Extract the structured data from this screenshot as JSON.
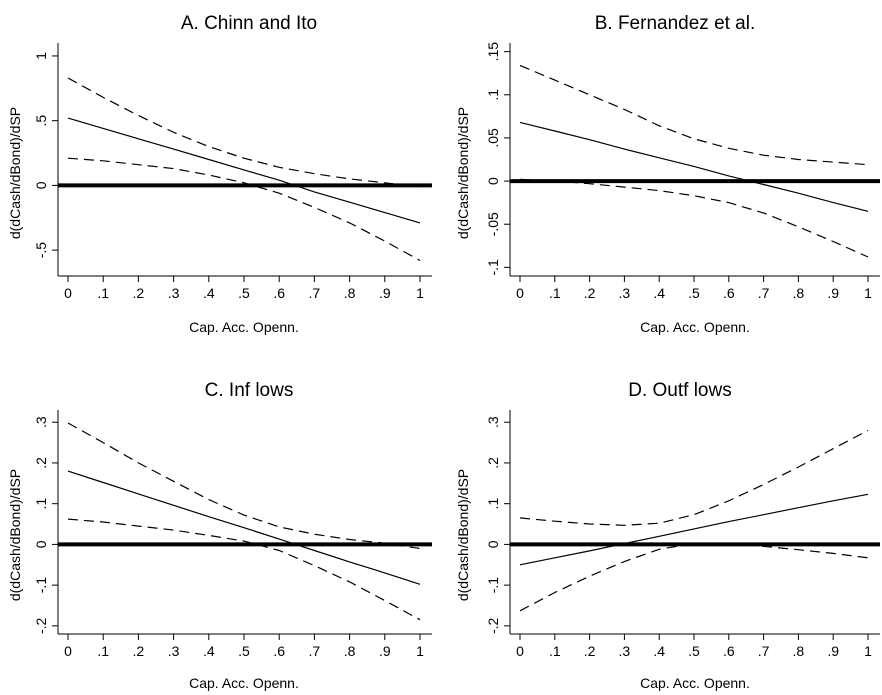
{
  "chart_data": [
    {
      "type": "line",
      "title": "A. Chinn and Ito",
      "xlabel": "Cap. Acc. Openn.",
      "ylabel": "d(dCash/dBond)/dSP",
      "xlim": [
        0,
        1
      ],
      "ylim": [
        -0.7,
        1.1
      ],
      "xticks": [
        0,
        0.1,
        0.2,
        0.3,
        0.4,
        0.5,
        0.6,
        0.7,
        0.8,
        0.9,
        1
      ],
      "xtick_labels": [
        "0",
        ".1",
        ".2",
        ".3",
        ".4",
        ".5",
        ".6",
        ".7",
        ".8",
        ".9",
        "1"
      ],
      "yticks": [
        -0.5,
        0,
        0.5,
        1
      ],
      "ytick_labels": [
        "-.5",
        "0",
        ".5",
        "1"
      ],
      "grid": false,
      "legend": "none",
      "zero_line": 0,
      "series": [
        {
          "style": "solid",
          "x": [
            0,
            0.1,
            0.2,
            0.3,
            0.4,
            0.5,
            0.6,
            0.7,
            0.8,
            0.9,
            1
          ],
          "y": [
            0.52,
            0.44,
            0.36,
            0.28,
            0.2,
            0.12,
            0.04,
            -0.05,
            -0.13,
            -0.21,
            -0.29
          ]
        },
        {
          "style": "dashed",
          "x": [
            0,
            0.1,
            0.2,
            0.3,
            0.4,
            0.5,
            0.6,
            0.7,
            0.8,
            0.9,
            1
          ],
          "y": [
            0.83,
            0.68,
            0.54,
            0.41,
            0.3,
            0.21,
            0.14,
            0.09,
            0.05,
            0.02,
            -0.01
          ]
        },
        {
          "style": "dashed",
          "x": [
            0,
            0.1,
            0.2,
            0.3,
            0.4,
            0.5,
            0.6,
            0.7,
            0.8,
            0.9,
            1
          ],
          "y": [
            0.21,
            0.19,
            0.16,
            0.13,
            0.08,
            0.02,
            -0.06,
            -0.17,
            -0.29,
            -0.43,
            -0.58
          ]
        }
      ]
    },
    {
      "type": "line",
      "title": "B. Fernandez et al.",
      "xlabel": "Cap. Acc. Openn.",
      "ylabel": "d(dCash/dBond)/dSP",
      "xlim": [
        0,
        1
      ],
      "ylim": [
        -0.11,
        0.16
      ],
      "xticks": [
        0,
        0.1,
        0.2,
        0.3,
        0.4,
        0.5,
        0.6,
        0.7,
        0.8,
        0.9,
        1
      ],
      "xtick_labels": [
        "0",
        ".1",
        ".2",
        ".3",
        ".4",
        ".5",
        ".6",
        ".7",
        ".8",
        ".9",
        "1"
      ],
      "yticks": [
        -0.1,
        -0.05,
        0,
        0.05,
        0.1,
        0.15
      ],
      "ytick_labels": [
        "-.1",
        "-.05",
        "0",
        ".05",
        ".1",
        ".15"
      ],
      "grid": false,
      "legend": "none",
      "zero_line": 0,
      "series": [
        {
          "style": "solid",
          "x": [
            0,
            0.1,
            0.2,
            0.3,
            0.4,
            0.5,
            0.6,
            0.7,
            0.8,
            0.9,
            1
          ],
          "y": [
            0.068,
            0.058,
            0.048,
            0.037,
            0.027,
            0.017,
            0.006,
            -0.004,
            -0.014,
            -0.025,
            -0.035
          ]
        },
        {
          "style": "dashed",
          "x": [
            0,
            0.1,
            0.2,
            0.3,
            0.4,
            0.5,
            0.6,
            0.7,
            0.8,
            0.9,
            1
          ],
          "y": [
            0.134,
            0.117,
            0.1,
            0.083,
            0.064,
            0.049,
            0.038,
            0.03,
            0.025,
            0.022,
            0.019
          ]
        },
        {
          "style": "dashed",
          "x": [
            0,
            0.1,
            0.2,
            0.3,
            0.4,
            0.5,
            0.6,
            0.7,
            0.8,
            0.9,
            1
          ],
          "y": [
            0.002,
            0.0,
            -0.003,
            -0.007,
            -0.011,
            -0.017,
            -0.025,
            -0.037,
            -0.053,
            -0.07,
            -0.088
          ]
        }
      ]
    },
    {
      "type": "line",
      "title": "C. Inf lows",
      "xlabel": "Cap. Acc. Openn.",
      "ylabel": "d(dCash/dBond)/dSP",
      "xlim": [
        0,
        1
      ],
      "ylim": [
        -0.22,
        0.33
      ],
      "xticks": [
        0,
        0.1,
        0.2,
        0.3,
        0.4,
        0.5,
        0.6,
        0.7,
        0.8,
        0.9,
        1
      ],
      "xtick_labels": [
        "0",
        ".1",
        ".2",
        ".3",
        ".4",
        ".5",
        ".6",
        ".7",
        ".8",
        ".9",
        "1"
      ],
      "yticks": [
        -0.2,
        -0.1,
        0,
        0.1,
        0.2,
        0.3
      ],
      "ytick_labels": [
        "-.2",
        "-.1",
        "0",
        ".1",
        ".2",
        ".3"
      ],
      "grid": false,
      "legend": "none",
      "zero_line": 0,
      "series": [
        {
          "style": "solid",
          "x": [
            0,
            0.1,
            0.2,
            0.3,
            0.4,
            0.5,
            0.6,
            0.7,
            0.8,
            0.9,
            1
          ],
          "y": [
            0.18,
            0.152,
            0.124,
            0.096,
            0.068,
            0.041,
            0.013,
            -0.015,
            -0.043,
            -0.07,
            -0.098
          ]
        },
        {
          "style": "dashed",
          "x": [
            0,
            0.1,
            0.2,
            0.3,
            0.4,
            0.5,
            0.6,
            0.7,
            0.8,
            0.9,
            1
          ],
          "y": [
            0.298,
            0.25,
            0.2,
            0.155,
            0.11,
            0.072,
            0.043,
            0.025,
            0.012,
            0.003,
            -0.01
          ]
        },
        {
          "style": "dashed",
          "x": [
            0,
            0.1,
            0.2,
            0.3,
            0.4,
            0.5,
            0.6,
            0.7,
            0.8,
            0.9,
            1
          ],
          "y": [
            0.062,
            0.055,
            0.045,
            0.035,
            0.022,
            0.008,
            -0.015,
            -0.052,
            -0.092,
            -0.138,
            -0.185
          ]
        }
      ]
    },
    {
      "type": "line",
      "title": "D. Outf lows",
      "xlabel": "Cap. Acc. Openn.",
      "ylabel": "d(dCash/dBond)/dSP",
      "xlim": [
        0,
        1
      ],
      "ylim": [
        -0.22,
        0.33
      ],
      "xticks": [
        0,
        0.1,
        0.2,
        0.3,
        0.4,
        0.5,
        0.6,
        0.7,
        0.8,
        0.9,
        1
      ],
      "xtick_labels": [
        "0",
        ".1",
        ".2",
        ".3",
        ".4",
        ".5",
        ".6",
        ".7",
        ".8",
        ".9",
        "1"
      ],
      "yticks": [
        -0.2,
        -0.1,
        0,
        0.1,
        0.2,
        0.3
      ],
      "ytick_labels": [
        "-.2",
        "-.1",
        "0",
        ".1",
        ".2",
        ".3"
      ],
      "grid": false,
      "legend": "none",
      "zero_line": 0,
      "series": [
        {
          "style": "solid",
          "x": [
            0,
            0.1,
            0.2,
            0.3,
            0.4,
            0.5,
            0.6,
            0.7,
            0.8,
            0.9,
            1
          ],
          "y": [
            -0.05,
            -0.033,
            -0.016,
            0.002,
            0.02,
            0.038,
            0.056,
            0.073,
            0.09,
            0.107,
            0.123
          ]
        },
        {
          "style": "dashed",
          "x": [
            0,
            0.1,
            0.2,
            0.3,
            0.4,
            0.5,
            0.6,
            0.7,
            0.8,
            0.9,
            1
          ],
          "y": [
            0.065,
            0.057,
            0.05,
            0.047,
            0.052,
            0.073,
            0.107,
            0.147,
            0.19,
            0.235,
            0.28
          ]
        },
        {
          "style": "dashed",
          "x": [
            0,
            0.1,
            0.2,
            0.3,
            0.4,
            0.5,
            0.6,
            0.7,
            0.8,
            0.9,
            1
          ],
          "y": [
            -0.163,
            -0.118,
            -0.078,
            -0.042,
            -0.012,
            0.002,
            0.003,
            -0.005,
            -0.013,
            -0.022,
            -0.033
          ]
        }
      ]
    }
  ]
}
